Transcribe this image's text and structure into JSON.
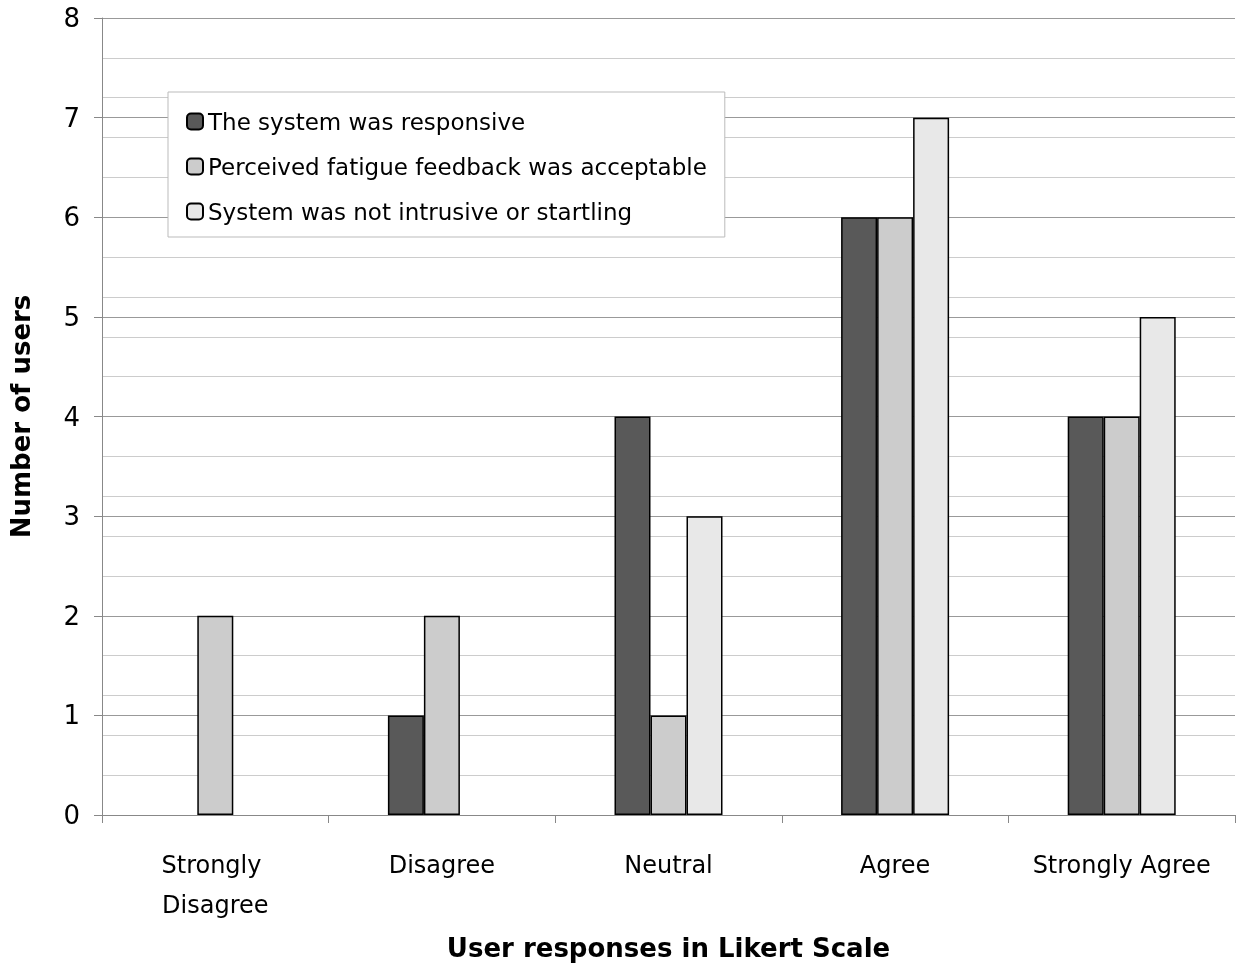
{
  "chart_data": {
    "type": "bar",
    "xlabel": "User responses in Likert Scale",
    "ylabel": "Number of users",
    "categories": [
      "Strongly Disagree",
      "Disagree",
      "Neutral",
      "Agree",
      "Strongly Agree"
    ],
    "series": [
      {
        "name": "The system was responsive",
        "color": "#595959",
        "values": [
          0,
          1,
          4,
          6,
          4
        ]
      },
      {
        "name": "Perceived fatigue feedback was acceptable",
        "color": "#cccccc",
        "values": [
          2,
          2,
          1,
          6,
          4
        ]
      },
      {
        "name": "System was not intrusive or startling",
        "color": "#e8e8e8",
        "values": [
          0,
          0,
          3,
          7,
          5
        ]
      }
    ],
    "ylim": [
      0,
      8
    ],
    "yticks": [
      0,
      1,
      2,
      3,
      4,
      5,
      6,
      7,
      8
    ],
    "grid": "y",
    "legend": "top left"
  }
}
